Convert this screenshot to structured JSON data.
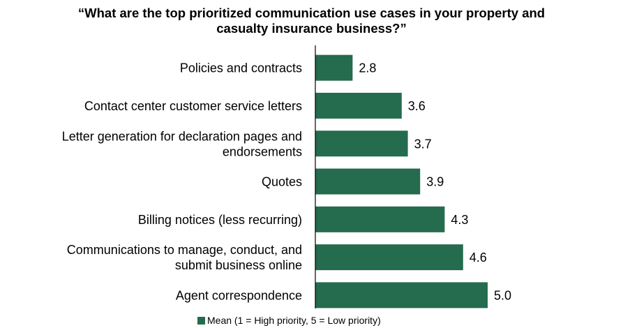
{
  "chart_data": {
    "type": "bar",
    "orientation": "horizontal",
    "title_line1": "“What are the top prioritized communication use cases in your property and",
    "title_line2": "casualty insurance business?”",
    "categories": [
      [
        "Policies and contracts"
      ],
      [
        "Contact center customer service letters"
      ],
      [
        "Letter generation for declaration pages and",
        "endorsements"
      ],
      [
        "Quotes"
      ],
      [
        "Billing notices (less recurring)"
      ],
      [
        "Communications to manage, conduct, and",
        "submit business online"
      ],
      [
        "Agent correspondence"
      ]
    ],
    "series": [
      {
        "name": "Mean (1 = High priority, 5 = Low priority)",
        "values": [
          2.8,
          3.6,
          3.7,
          3.9,
          4.3,
          4.6,
          5.0
        ],
        "labels": [
          "2.8",
          "3.6",
          "3.7",
          "3.9",
          "4.3",
          "4.6",
          "5.0"
        ],
        "color": "#256b4e"
      }
    ],
    "xlim": [
      0,
      5.5
    ],
    "grid": false,
    "legend_position": "bottom"
  }
}
